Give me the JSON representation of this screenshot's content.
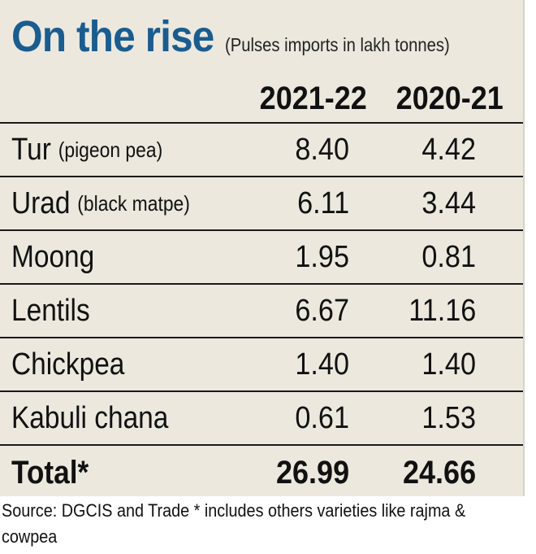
{
  "chart_data": {
    "type": "table",
    "title": "On the rise",
    "subtitle": "(Pulses imports in lakh tonnes)",
    "columns": [
      "2021-22",
      "2020-21"
    ],
    "rows": [
      {
        "name": "Tur",
        "note": "(pigeon pea)",
        "values": [
          "8.40",
          "4.42"
        ]
      },
      {
        "name": "Urad",
        "note": "(black matpe)",
        "values": [
          "6.11",
          "3.44"
        ]
      },
      {
        "name": "Moong",
        "note": "",
        "values": [
          "1.95",
          "0.81"
        ]
      },
      {
        "name": "Lentils",
        "note": "",
        "values": [
          "6.67",
          "11.16"
        ]
      },
      {
        "name": "Chickpea",
        "note": "",
        "values": [
          "1.40",
          "1.40"
        ]
      },
      {
        "name": "Kabuli chana",
        "note": "",
        "values": [
          "0.61",
          "1.53"
        ]
      }
    ],
    "total": {
      "name": "Total*",
      "values": [
        "26.99",
        "24.66"
      ]
    },
    "source": "Source: DGCIS and Trade  * includes others varieties like rajma & cowpea"
  },
  "colors": {
    "title": "#1a5c8f",
    "background": "#ece8de",
    "rule": "#1a1a1a"
  }
}
